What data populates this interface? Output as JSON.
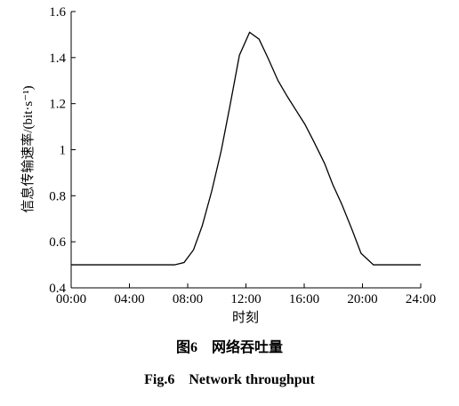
{
  "chart_data": {
    "type": "line",
    "x_label": "时刻",
    "y_label": "信息传输速率/(bit·s⁻¹)",
    "caption_cn": "图6　网络吞吐量",
    "caption_en": "Fig.6　Network throughput",
    "x": [
      0,
      7.1,
      7.75,
      8.4,
      9.0,
      9.65,
      10.3,
      10.9,
      11.55,
      12.25,
      12.9,
      13.5,
      14.2,
      14.85,
      15.45,
      16.05,
      16.7,
      17.4,
      17.95,
      18.6,
      19.3,
      19.9,
      20.75,
      24
    ],
    "series": [
      {
        "color": "#000000",
        "values": [
          0.5,
          0.5,
          0.51,
          0.565,
          0.67,
          0.82,
          0.995,
          1.19,
          1.41,
          1.51,
          1.48,
          1.4,
          1.3,
          1.23,
          1.17,
          1.11,
          1.03,
          0.94,
          0.85,
          0.76,
          0.65,
          0.55,
          0.5,
          0.5
        ]
      }
    ],
    "xlim": [
      0,
      24
    ],
    "xticks": [
      {
        "value": 0,
        "label": "00:00"
      },
      {
        "value": 4,
        "label": "04:00"
      },
      {
        "value": 8,
        "label": "08:00"
      },
      {
        "value": 12,
        "label": "12:00"
      },
      {
        "value": 16,
        "label": "16:00"
      },
      {
        "value": 20,
        "label": "20:00"
      },
      {
        "value": 24,
        "label": "24:00"
      }
    ],
    "ylim": [
      0.4,
      1.6
    ],
    "yticks": [
      0.4,
      0.6,
      0.8,
      1.0,
      1.2,
      1.4,
      1.6
    ],
    "grid": false
  }
}
